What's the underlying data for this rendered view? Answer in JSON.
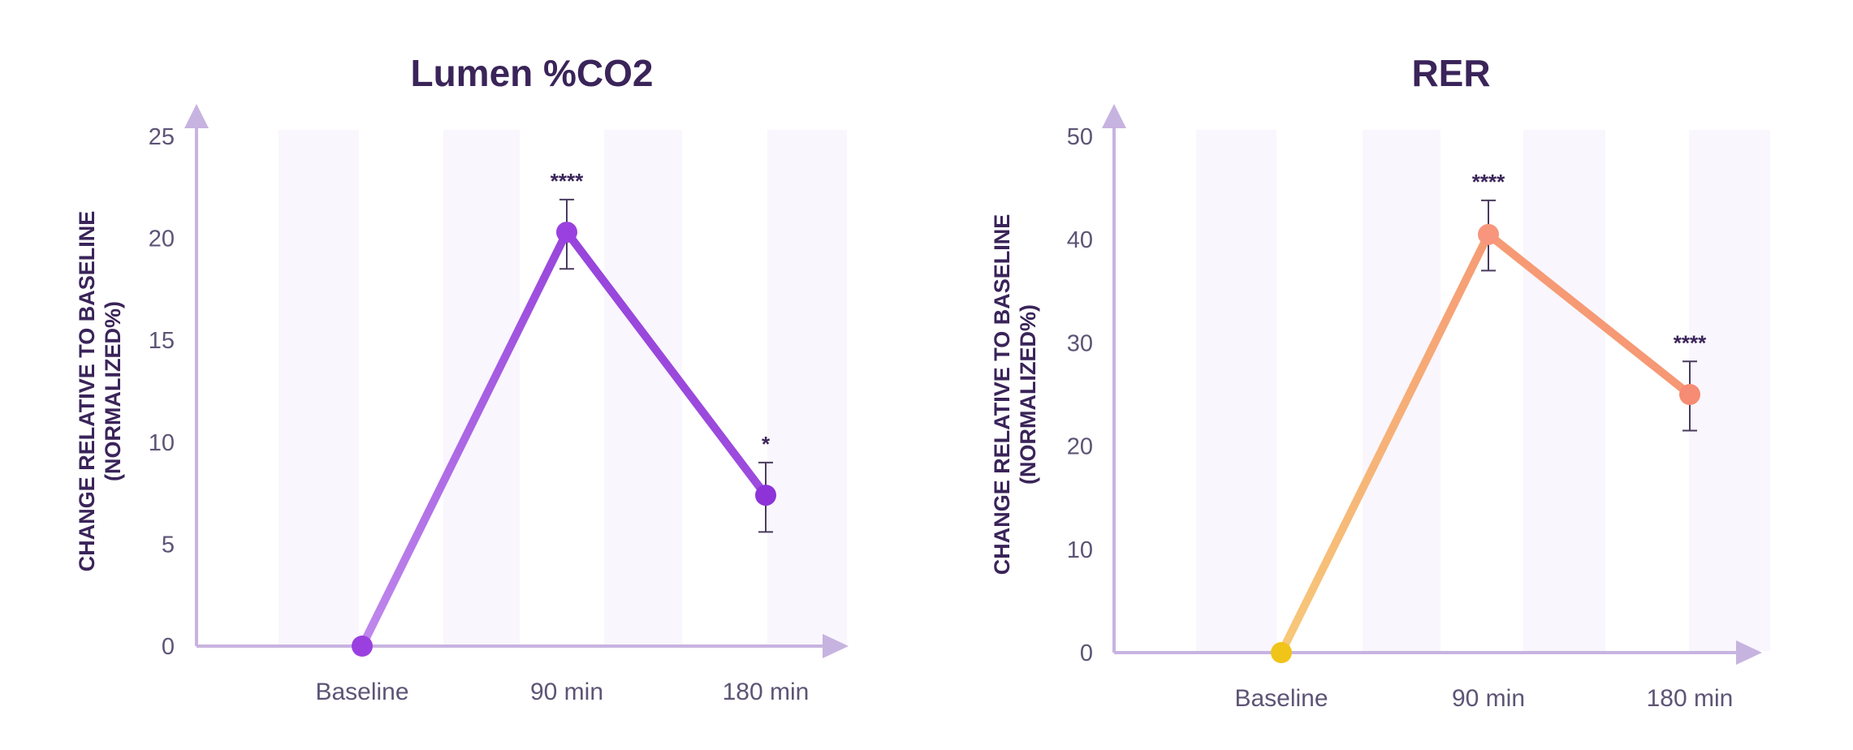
{
  "chart_data": [
    {
      "type": "line",
      "title": "Lumen %CO2",
      "ylabel_line1": "CHANGE RELATIVE TO BASELINE",
      "ylabel_line2": "(NORMALIZED%)",
      "xlabel": "",
      "categories": [
        "Baseline",
        "90 min",
        "180 min"
      ],
      "values": [
        0,
        20.3,
        7.4
      ],
      "error_low": [
        0,
        18.5,
        5.6
      ],
      "error_high": [
        0,
        21.9,
        9.0
      ],
      "significance": [
        "",
        "****",
        "*"
      ],
      "yticks": [
        "0",
        "5",
        "10",
        "15",
        "20",
        "25"
      ],
      "ylim": [
        0,
        25
      ],
      "line_color_start": "#c089ec",
      "line_color_end": "#8b2fd6",
      "point_colors": [
        "#9b40e0",
        "#9b40e0",
        "#8d33d8"
      ],
      "axis_color": "#c7b3e0",
      "band_color": "#f9f6fd"
    },
    {
      "type": "line",
      "title": "RER",
      "ylabel_line1": "CHANGE RELATIVE TO BASELINE",
      "ylabel_line2": "(NORMALIZED%)",
      "xlabel": "",
      "categories": [
        "Baseline",
        "90 min",
        "180 min"
      ],
      "values": [
        0,
        40.5,
        25.0
      ],
      "error_low": [
        0,
        37.0,
        21.5
      ],
      "error_high": [
        0,
        43.8,
        28.2
      ],
      "significance": [
        "",
        "****",
        "****"
      ],
      "yticks": [
        "0",
        "10",
        "20",
        "30",
        "40",
        "50"
      ],
      "ylim": [
        0,
        50
      ],
      "line_color_start": "#f7c97a",
      "line_color_end": "#f58c73",
      "point_colors": [
        "#f0c419",
        "#f7967c",
        "#f58c73"
      ],
      "axis_color": "#c7b3e0",
      "band_color": "#f9f6fd"
    }
  ]
}
